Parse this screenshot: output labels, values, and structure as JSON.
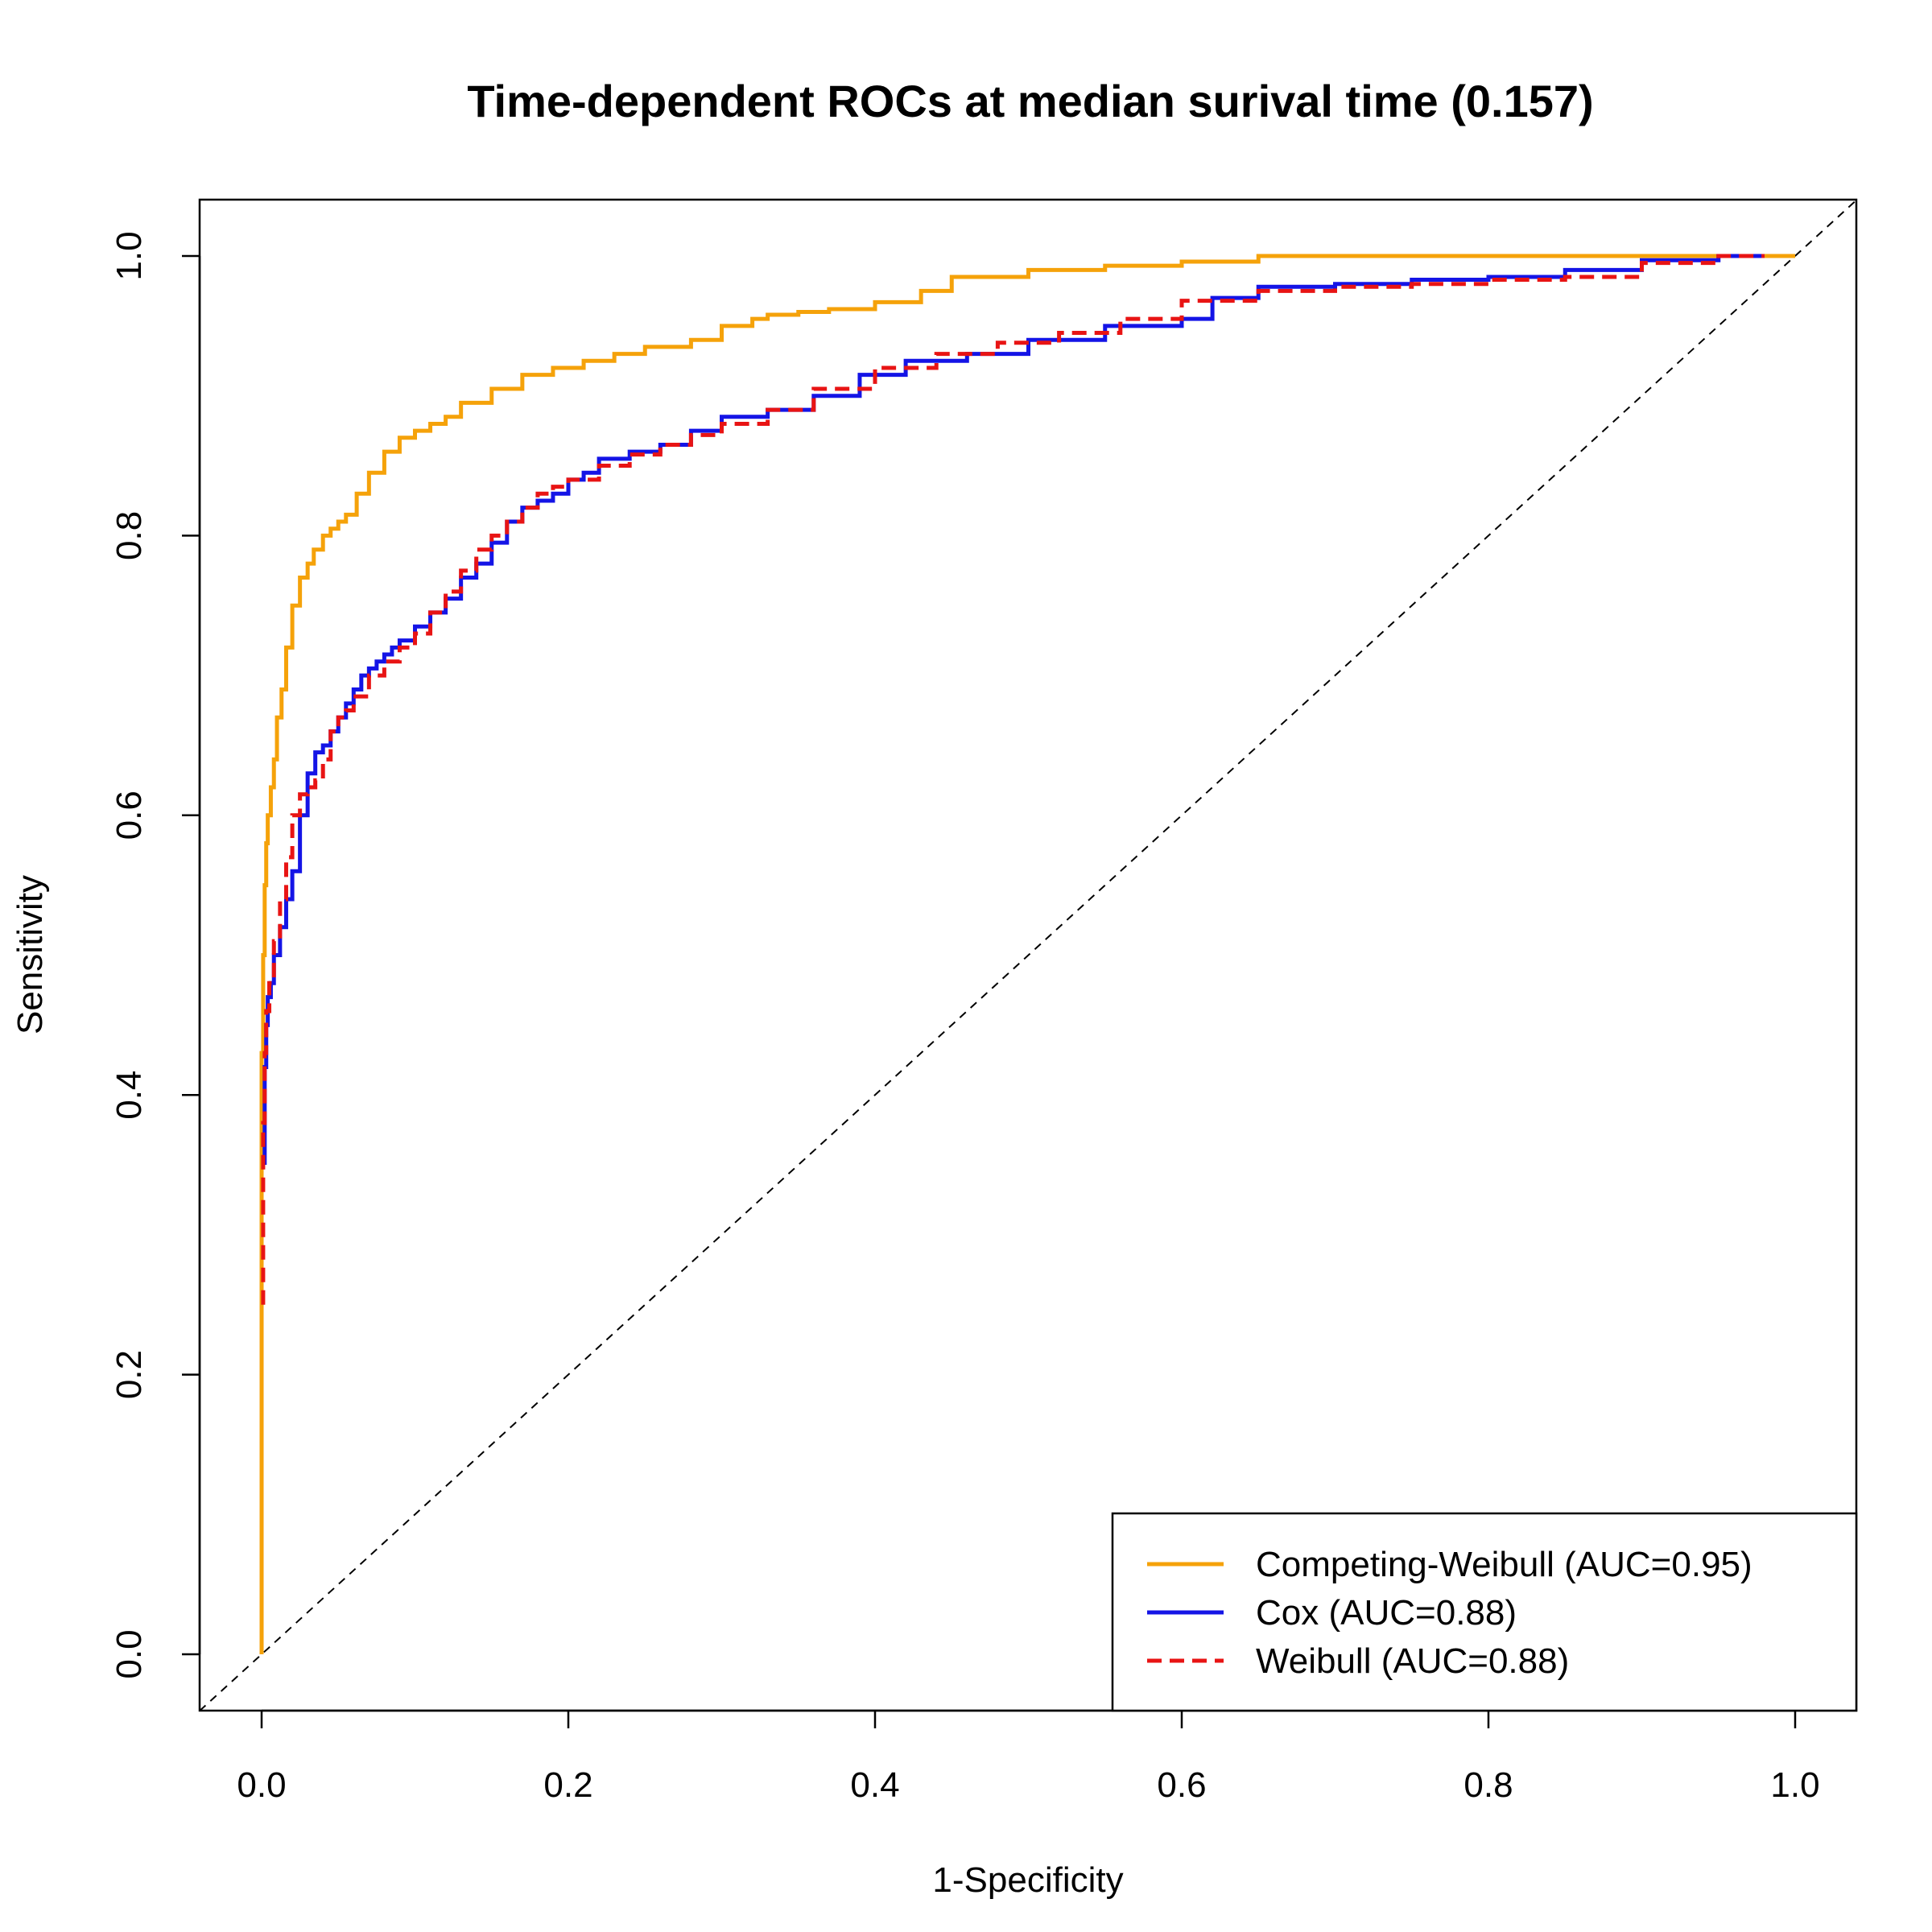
{
  "chart_data": {
    "type": "line",
    "title": "Time-dependent ROCs at median surival time (0.157)",
    "xlabel": "1-Specificity",
    "ylabel": "Sensitivity",
    "xlim": [
      0,
      1
    ],
    "ylim": [
      0,
      1
    ],
    "x_ticks": [
      {
        "value": 0.0,
        "label": "0.0"
      },
      {
        "value": 0.2,
        "label": "0.2"
      },
      {
        "value": 0.4,
        "label": "0.4"
      },
      {
        "value": 0.6,
        "label": "0.6"
      },
      {
        "value": 0.8,
        "label": "0.8"
      },
      {
        "value": 1.0,
        "label": "1.0"
      }
    ],
    "y_ticks": [
      {
        "value": 0.0,
        "label": "0.0"
      },
      {
        "value": 0.2,
        "label": "0.2"
      },
      {
        "value": 0.4,
        "label": "0.4"
      },
      {
        "value": 0.6,
        "label": "0.6"
      },
      {
        "value": 0.8,
        "label": "0.8"
      },
      {
        "value": 1.0,
        "label": "1.0"
      }
    ],
    "grid": false,
    "legend_position": "bottom-right",
    "reference_line": {
      "style": "dashed",
      "color": "#000000",
      "from": [
        0,
        0
      ],
      "to": [
        1,
        1
      ]
    },
    "series": [
      {
        "name": "Competing-Weibull (AUC=0.95)",
        "color": "#F5A20A",
        "dashed": false,
        "x": [
          0.0,
          0.0,
          0.001,
          0.002,
          0.003,
          0.004,
          0.006,
          0.008,
          0.01,
          0.013,
          0.016,
          0.02,
          0.025,
          0.03,
          0.034,
          0.04,
          0.045,
          0.05,
          0.055,
          0.062,
          0.07,
          0.08,
          0.09,
          0.1,
          0.11,
          0.12,
          0.13,
          0.15,
          0.17,
          0.19,
          0.21,
          0.23,
          0.25,
          0.28,
          0.3,
          0.32,
          0.33,
          0.35,
          0.37,
          0.4,
          0.43,
          0.45,
          0.5,
          0.55,
          0.6,
          0.65,
          0.7,
          0.75,
          0.8,
          0.9,
          1.0
        ],
        "y": [
          0.0,
          0.3,
          0.43,
          0.5,
          0.55,
          0.58,
          0.6,
          0.62,
          0.64,
          0.67,
          0.69,
          0.72,
          0.75,
          0.77,
          0.78,
          0.79,
          0.8,
          0.805,
          0.81,
          0.815,
          0.83,
          0.845,
          0.86,
          0.87,
          0.875,
          0.88,
          0.885,
          0.895,
          0.905,
          0.915,
          0.92,
          0.925,
          0.93,
          0.935,
          0.94,
          0.95,
          0.955,
          0.958,
          0.96,
          0.962,
          0.967,
          0.975,
          0.985,
          0.99,
          0.993,
          0.996,
          1.0,
          1.0,
          1.0,
          1.0,
          1.0
        ]
      },
      {
        "name": "Cox (AUC=0.88)",
        "color": "#1414E6",
        "dashed": false,
        "x": [
          0.002,
          0.002,
          0.003,
          0.004,
          0.006,
          0.008,
          0.012,
          0.016,
          0.02,
          0.025,
          0.03,
          0.035,
          0.04,
          0.045,
          0.05,
          0.055,
          0.06,
          0.065,
          0.07,
          0.075,
          0.08,
          0.085,
          0.09,
          0.1,
          0.11,
          0.12,
          0.13,
          0.14,
          0.15,
          0.16,
          0.17,
          0.18,
          0.19,
          0.2,
          0.21,
          0.22,
          0.24,
          0.26,
          0.28,
          0.3,
          0.33,
          0.36,
          0.39,
          0.42,
          0.46,
          0.5,
          0.55,
          0.6,
          0.62,
          0.65,
          0.7,
          0.75,
          0.8,
          0.85,
          0.9,
          0.95,
          0.98
        ],
        "y": [
          0.35,
          0.38,
          0.42,
          0.45,
          0.47,
          0.48,
          0.5,
          0.52,
          0.54,
          0.56,
          0.6,
          0.63,
          0.645,
          0.65,
          0.66,
          0.67,
          0.68,
          0.69,
          0.7,
          0.705,
          0.71,
          0.715,
          0.72,
          0.725,
          0.735,
          0.745,
          0.755,
          0.77,
          0.78,
          0.795,
          0.81,
          0.82,
          0.825,
          0.83,
          0.84,
          0.845,
          0.855,
          0.86,
          0.865,
          0.875,
          0.885,
          0.89,
          0.9,
          0.915,
          0.925,
          0.93,
          0.94,
          0.95,
          0.955,
          0.97,
          0.978,
          0.98,
          0.983,
          0.985,
          0.99,
          0.997,
          1.0
        ]
      },
      {
        "name": "Weibull (AUC=0.88)",
        "color": "#E81414",
        "dashed": true,
        "x": [
          0.001,
          0.001,
          0.002,
          0.003,
          0.005,
          0.008,
          0.012,
          0.016,
          0.02,
          0.025,
          0.03,
          0.035,
          0.04,
          0.045,
          0.05,
          0.055,
          0.06,
          0.07,
          0.08,
          0.09,
          0.1,
          0.11,
          0.12,
          0.13,
          0.14,
          0.15,
          0.16,
          0.17,
          0.18,
          0.19,
          0.2,
          0.22,
          0.24,
          0.26,
          0.28,
          0.3,
          0.33,
          0.36,
          0.4,
          0.44,
          0.48,
          0.52,
          0.56,
          0.6,
          0.65,
          0.7,
          0.75,
          0.8,
          0.85,
          0.9,
          0.95,
          0.98
        ],
        "y": [
          0.25,
          0.3,
          0.38,
          0.43,
          0.46,
          0.48,
          0.51,
          0.54,
          0.57,
          0.6,
          0.615,
          0.62,
          0.625,
          0.64,
          0.66,
          0.67,
          0.675,
          0.685,
          0.7,
          0.71,
          0.72,
          0.73,
          0.745,
          0.76,
          0.775,
          0.79,
          0.8,
          0.81,
          0.82,
          0.83,
          0.835,
          0.84,
          0.85,
          0.858,
          0.865,
          0.872,
          0.88,
          0.89,
          0.905,
          0.92,
          0.93,
          0.938,
          0.945,
          0.955,
          0.968,
          0.975,
          0.978,
          0.98,
          0.983,
          0.985,
          0.995,
          1.0
        ]
      }
    ]
  }
}
